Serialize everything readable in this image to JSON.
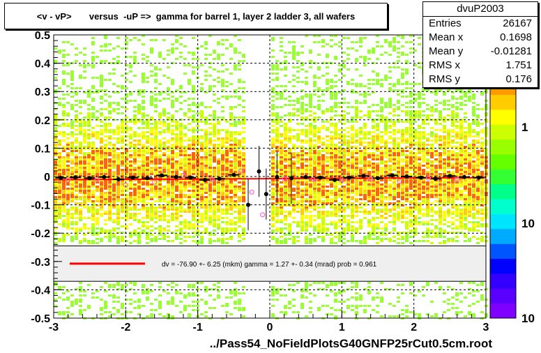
{
  "title": "<v - vP>       versus  -uP =>  gamma for barrel 1, layer 2 ladder 3, all wafers",
  "stats": {
    "name": "dvuP2003",
    "rows": [
      {
        "label": "Entries",
        "value": "26167"
      },
      {
        "label": "Mean x",
        "value": "0.1698"
      },
      {
        "label": "Mean y",
        "value": "-0.01281"
      },
      {
        "label": "RMS x",
        "value": "1.751"
      },
      {
        "label": "RMS y",
        "value": "0.176"
      }
    ]
  },
  "fit_legend": "dv =  -76.90 +-  6.25 (mkm) gamma =    1.27 +-  0.34 (mrad) prob = 0.961",
  "x_axis_title": "../Pass54_NoFieldPlotsG40GNFP25rCut0.5cm.root",
  "colors": {
    "fit_line": "#ff0000",
    "points_black": "#000000",
    "points_open": "#ff66cc",
    "palette": [
      "#7f00ff",
      "#5a00ff",
      "#3300ff",
      "#0000ff",
      "#0055ff",
      "#00aaff",
      "#00e5ff",
      "#00ffcc",
      "#00ff88",
      "#33ff33",
      "#66ff00",
      "#99ff00",
      "#ccff00",
      "#ffff00",
      "#ffcc00",
      "#ff9900",
      "#ff6600",
      "#ff3300",
      "#ff0000"
    ]
  },
  "chart_data": {
    "type": "heatmap",
    "title": "<v - vP>       versus  -uP =>  gamma for barrel 1, layer 2 ladder 3, all wafers",
    "xlabel": "../Pass54_NoFieldPlotsG40GNFP25rCut0.5cm.root",
    "ylabel": "",
    "xlim": [
      -3,
      3
    ],
    "ylim": [
      -0.5,
      0.5
    ],
    "x_ticks": [
      "-3",
      "-2",
      "-1",
      "0",
      "1",
      "2",
      "3"
    ],
    "y_ticks": [
      "-0.5",
      "-0.4",
      "-0.3",
      "-0.2",
      "-0.1",
      "0",
      "0.1",
      "0.2",
      "0.3",
      "0.4",
      "0.5"
    ],
    "z_ticks": [
      "1",
      "10",
      "10"
    ],
    "grid": true,
    "empty_band_x": [
      -0.35,
      0.0
    ],
    "fit": {
      "intercept_mkm": -76.9,
      "intercept_err_mkm": 6.25,
      "gamma_mrad": 1.27,
      "gamma_err_mrad": 0.34,
      "prob": 0.961
    },
    "profile_points": [
      {
        "x": -2.9,
        "y": -0.005
      },
      {
        "x": -2.7,
        "y": -0.003
      },
      {
        "x": -2.5,
        "y": -0.006
      },
      {
        "x": -2.3,
        "y": -0.002
      },
      {
        "x": -2.1,
        "y": -0.01
      },
      {
        "x": -1.9,
        "y": -0.004
      },
      {
        "x": -1.7,
        "y": -0.006
      },
      {
        "x": -1.5,
        "y": 0.004
      },
      {
        "x": -1.3,
        "y": -0.002
      },
      {
        "x": -1.1,
        "y": -0.004
      },
      {
        "x": -0.9,
        "y": -0.012
      },
      {
        "x": -0.7,
        "y": -0.008
      },
      {
        "x": -0.5,
        "y": 0.006
      },
      {
        "x": -0.3,
        "y": -0.1
      },
      {
        "x": -0.15,
        "y": 0.018
      },
      {
        "x": -0.05,
        "y": -0.062
      },
      {
        "x": 0.1,
        "y": -0.002
      },
      {
        "x": 0.3,
        "y": -0.006
      },
      {
        "x": 0.5,
        "y": -0.002
      },
      {
        "x": 0.7,
        "y": -0.004
      },
      {
        "x": 0.9,
        "y": -0.012
      },
      {
        "x": 1.1,
        "y": -0.004
      },
      {
        "x": 1.3,
        "y": 0.002
      },
      {
        "x": 1.5,
        "y": -0.006
      },
      {
        "x": 1.7,
        "y": 0.004
      },
      {
        "x": 1.9,
        "y": 0.0
      },
      {
        "x": 2.1,
        "y": -0.004
      },
      {
        "x": 2.3,
        "y": -0.008
      },
      {
        "x": 2.5,
        "y": 0.002
      },
      {
        "x": 2.7,
        "y": -0.002
      },
      {
        "x": 2.9,
        "y": -0.004
      }
    ],
    "profile_open_points": [
      {
        "x": -2.8,
        "y": -0.012
      },
      {
        "x": -2.4,
        "y": -0.01
      },
      {
        "x": -2.0,
        "y": -0.03
      },
      {
        "x": -1.6,
        "y": -0.02
      },
      {
        "x": -1.2,
        "y": 0.004
      },
      {
        "x": -0.8,
        "y": -0.01
      },
      {
        "x": -0.4,
        "y": 0.02
      },
      {
        "x": -0.25,
        "y": -0.055
      },
      {
        "x": -0.1,
        "y": -0.135
      },
      {
        "x": 0.2,
        "y": -0.008
      },
      {
        "x": 0.6,
        "y": -0.01
      },
      {
        "x": 1.0,
        "y": -0.014
      },
      {
        "x": 1.4,
        "y": -0.01
      },
      {
        "x": 1.8,
        "y": -0.016
      },
      {
        "x": 2.2,
        "y": -0.006
      },
      {
        "x": 2.6,
        "y": -0.01
      }
    ]
  }
}
